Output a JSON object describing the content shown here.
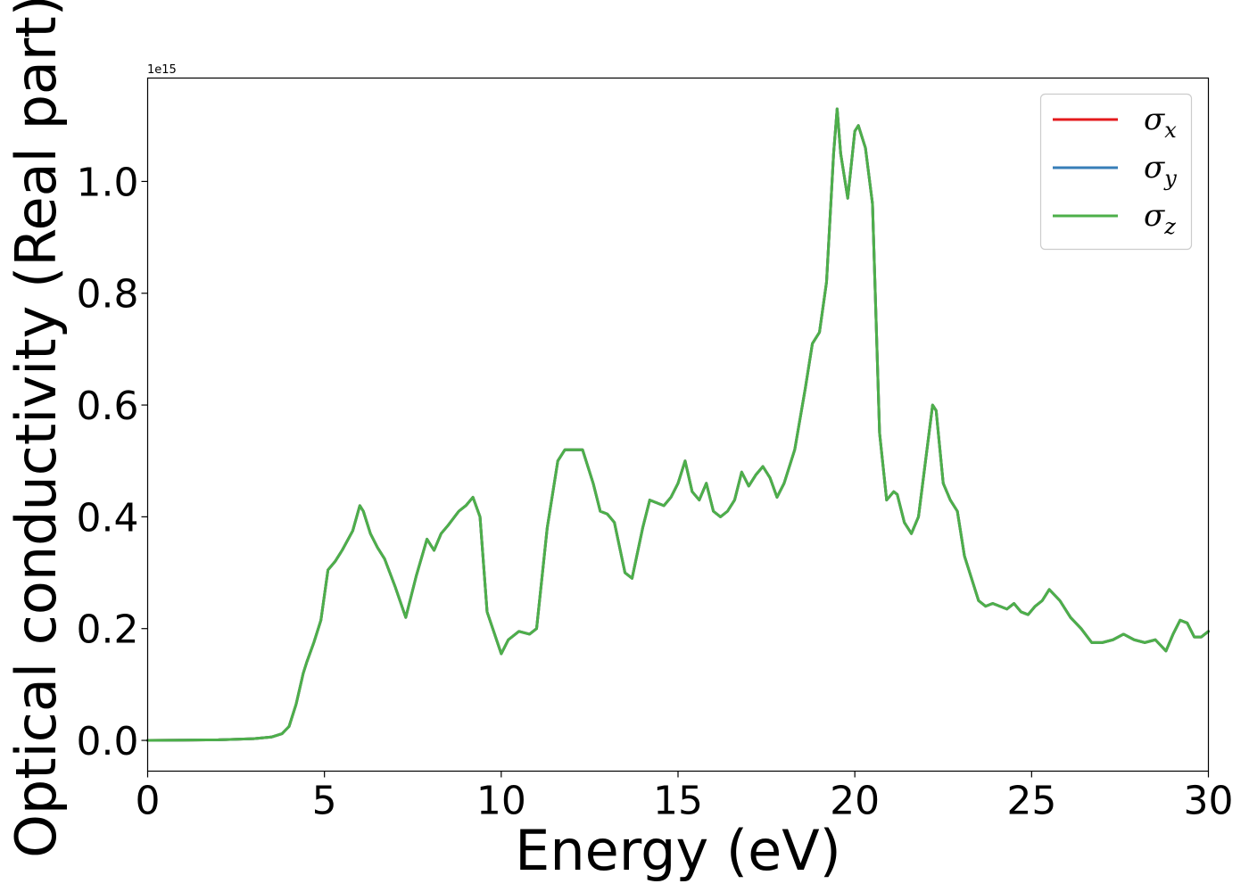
{
  "chart_data": {
    "type": "line",
    "title": "",
    "xlabel": "Energy (eV)",
    "ylabel": "Optical conductivity (Real part)",
    "y_offset_label": "1e15",
    "xlim": [
      0,
      30
    ],
    "ylim": [
      -0.055,
      1.185
    ],
    "x_ticks": [
      0,
      5,
      10,
      15,
      20,
      25,
      30
    ],
    "x_tick_labels": [
      "0",
      "5",
      "10",
      "15",
      "20",
      "25",
      "30"
    ],
    "y_ticks": [
      0.0,
      0.2,
      0.4,
      0.6,
      0.8,
      1.0
    ],
    "y_tick_labels": [
      "0.0",
      "0.2",
      "0.4",
      "0.6",
      "0.8",
      "1.0"
    ],
    "grid": false,
    "legend_position": "upper right",
    "x": [
      0,
      1,
      2,
      3,
      3.5,
      3.8,
      4.0,
      4.2,
      4.4,
      4.5,
      4.7,
      4.9,
      5.1,
      5.3,
      5.5,
      5.8,
      6.0,
      6.1,
      6.3,
      6.5,
      6.7,
      7.0,
      7.3,
      7.6,
      7.9,
      8.1,
      8.3,
      8.5,
      8.8,
      9.0,
      9.2,
      9.4,
      9.6,
      10.0,
      10.2,
      10.5,
      10.8,
      11.0,
      11.3,
      11.6,
      11.8,
      12.0,
      12.3,
      12.6,
      12.8,
      13.0,
      13.2,
      13.5,
      13.7,
      14.0,
      14.2,
      14.4,
      14.6,
      14.8,
      15.0,
      15.2,
      15.4,
      15.6,
      15.8,
      16.0,
      16.2,
      16.4,
      16.6,
      16.8,
      17.0,
      17.2,
      17.4,
      17.6,
      17.8,
      18.0,
      18.3,
      18.6,
      18.8,
      19.0,
      19.2,
      19.4,
      19.5,
      19.6,
      19.8,
      20.0,
      20.1,
      20.3,
      20.5,
      20.7,
      20.9,
      21.1,
      21.2,
      21.4,
      21.6,
      21.8,
      22.0,
      22.2,
      22.3,
      22.5,
      22.7,
      22.9,
      23.1,
      23.3,
      23.5,
      23.7,
      23.9,
      24.1,
      24.3,
      24.5,
      24.7,
      24.9,
      25.1,
      25.3,
      25.5,
      25.8,
      26.1,
      26.4,
      26.7,
      27.0,
      27.3,
      27.6,
      27.9,
      28.2,
      28.5,
      28.8,
      29.0,
      29.2,
      29.4,
      29.6,
      29.8,
      30
    ],
    "series": [
      {
        "name": "σx",
        "color": "#e41a1c",
        "values": [
          0.0,
          0.0005,
          0.001,
          0.003,
          0.006,
          0.012,
          0.025,
          0.065,
          0.12,
          0.14,
          0.175,
          0.215,
          0.305,
          0.32,
          0.34,
          0.375,
          0.42,
          0.41,
          0.37,
          0.345,
          0.325,
          0.275,
          0.22,
          0.295,
          0.36,
          0.34,
          0.37,
          0.385,
          0.41,
          0.42,
          0.435,
          0.4,
          0.23,
          0.155,
          0.18,
          0.195,
          0.19,
          0.2,
          0.38,
          0.5,
          0.52,
          0.52,
          0.52,
          0.46,
          0.41,
          0.405,
          0.39,
          0.3,
          0.29,
          0.38,
          0.43,
          0.425,
          0.42,
          0.435,
          0.46,
          0.5,
          0.445,
          0.43,
          0.46,
          0.41,
          0.4,
          0.41,
          0.43,
          0.48,
          0.455,
          0.475,
          0.49,
          0.47,
          0.435,
          0.46,
          0.52,
          0.63,
          0.71,
          0.73,
          0.82,
          1.05,
          1.13,
          1.05,
          0.97,
          1.09,
          1.1,
          1.06,
          0.96,
          0.55,
          0.43,
          0.445,
          0.44,
          0.39,
          0.37,
          0.4,
          0.5,
          0.6,
          0.59,
          0.46,
          0.43,
          0.41,
          0.33,
          0.29,
          0.25,
          0.24,
          0.245,
          0.24,
          0.235,
          0.245,
          0.23,
          0.225,
          0.24,
          0.25,
          0.27,
          0.25,
          0.22,
          0.2,
          0.175,
          0.175,
          0.18,
          0.19,
          0.18,
          0.175,
          0.18,
          0.16,
          0.19,
          0.215,
          0.21,
          0.185,
          0.185,
          0.195
        ]
      },
      {
        "name": "σy",
        "color": "#377eb8",
        "values": [
          0.0,
          0.0005,
          0.001,
          0.003,
          0.006,
          0.012,
          0.025,
          0.065,
          0.12,
          0.14,
          0.175,
          0.215,
          0.305,
          0.32,
          0.34,
          0.375,
          0.42,
          0.41,
          0.37,
          0.345,
          0.325,
          0.275,
          0.22,
          0.295,
          0.36,
          0.34,
          0.37,
          0.385,
          0.41,
          0.42,
          0.435,
          0.4,
          0.23,
          0.155,
          0.18,
          0.195,
          0.19,
          0.2,
          0.38,
          0.5,
          0.52,
          0.52,
          0.52,
          0.46,
          0.41,
          0.405,
          0.39,
          0.3,
          0.29,
          0.38,
          0.43,
          0.425,
          0.42,
          0.435,
          0.46,
          0.5,
          0.445,
          0.43,
          0.46,
          0.41,
          0.4,
          0.41,
          0.43,
          0.48,
          0.455,
          0.475,
          0.49,
          0.47,
          0.435,
          0.46,
          0.52,
          0.63,
          0.71,
          0.73,
          0.82,
          1.05,
          1.13,
          1.05,
          0.97,
          1.09,
          1.1,
          1.06,
          0.96,
          0.55,
          0.43,
          0.445,
          0.44,
          0.39,
          0.37,
          0.4,
          0.5,
          0.6,
          0.59,
          0.46,
          0.43,
          0.41,
          0.33,
          0.29,
          0.25,
          0.24,
          0.245,
          0.24,
          0.235,
          0.245,
          0.23,
          0.225,
          0.24,
          0.25,
          0.27,
          0.25,
          0.22,
          0.2,
          0.175,
          0.175,
          0.18,
          0.19,
          0.18,
          0.175,
          0.18,
          0.16,
          0.19,
          0.215,
          0.21,
          0.185,
          0.185,
          0.195
        ]
      },
      {
        "name": "σz",
        "color": "#4daf4a",
        "values": [
          0.0,
          0.0005,
          0.001,
          0.003,
          0.006,
          0.012,
          0.025,
          0.065,
          0.12,
          0.14,
          0.175,
          0.215,
          0.305,
          0.32,
          0.34,
          0.375,
          0.42,
          0.41,
          0.37,
          0.345,
          0.325,
          0.275,
          0.22,
          0.295,
          0.36,
          0.34,
          0.37,
          0.385,
          0.41,
          0.42,
          0.435,
          0.4,
          0.23,
          0.155,
          0.18,
          0.195,
          0.19,
          0.2,
          0.38,
          0.5,
          0.52,
          0.52,
          0.52,
          0.46,
          0.41,
          0.405,
          0.39,
          0.3,
          0.29,
          0.38,
          0.43,
          0.425,
          0.42,
          0.435,
          0.46,
          0.5,
          0.445,
          0.43,
          0.46,
          0.41,
          0.4,
          0.41,
          0.43,
          0.48,
          0.455,
          0.475,
          0.49,
          0.47,
          0.435,
          0.46,
          0.52,
          0.63,
          0.71,
          0.73,
          0.82,
          1.05,
          1.13,
          1.05,
          0.97,
          1.09,
          1.1,
          1.06,
          0.96,
          0.55,
          0.43,
          0.445,
          0.44,
          0.39,
          0.37,
          0.4,
          0.5,
          0.6,
          0.59,
          0.46,
          0.43,
          0.41,
          0.33,
          0.29,
          0.25,
          0.24,
          0.245,
          0.24,
          0.235,
          0.245,
          0.23,
          0.225,
          0.24,
          0.25,
          0.27,
          0.25,
          0.22,
          0.2,
          0.175,
          0.175,
          0.18,
          0.19,
          0.18,
          0.175,
          0.18,
          0.16,
          0.19,
          0.215,
          0.21,
          0.185,
          0.185,
          0.195
        ]
      }
    ],
    "legend": [
      {
        "symbol": "σ",
        "subscript": "x",
        "color": "#e41a1c"
      },
      {
        "symbol": "σ",
        "subscript": "y",
        "color": "#377eb8"
      },
      {
        "symbol": "σ",
        "subscript": "z",
        "color": "#4daf4a"
      }
    ]
  }
}
